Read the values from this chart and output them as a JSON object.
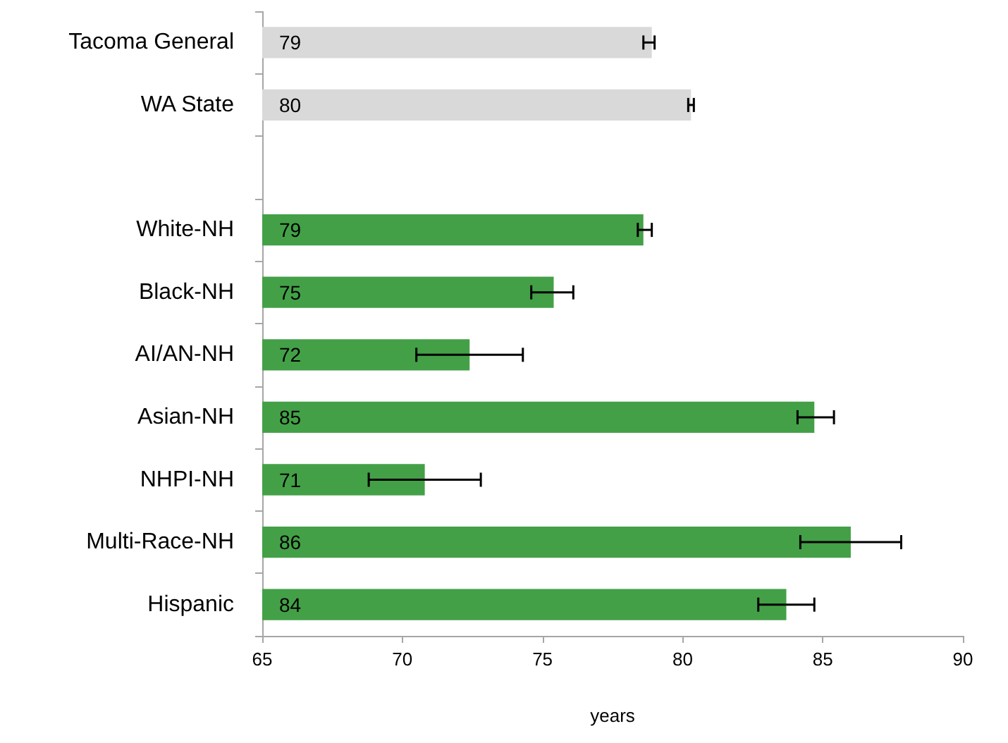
{
  "chart_data": {
    "type": "bar",
    "orientation": "horizontal",
    "xlabel": "years",
    "categories": [
      "Tacoma General",
      "WA State",
      null,
      "White-NH",
      "Black-NH",
      "AI/AN-NH",
      "Asian-NH",
      "NHPI-NH",
      "Multi-Race-NH",
      "Hispanic"
    ],
    "values": [
      78.9,
      80.3,
      null,
      78.6,
      75.4,
      72.4,
      84.7,
      70.8,
      86.0,
      83.7
    ],
    "colors": [
      "#d9d9d9",
      "#d9d9d9",
      null,
      "#43a047",
      "#43a047",
      "#43a047",
      "#43a047",
      "#43a047",
      "#43a047",
      "#43a047"
    ],
    "value_labels": [
      "79",
      "80",
      null,
      "79",
      "75",
      "72",
      "85",
      "71",
      "86",
      "84"
    ],
    "errors": [
      [
        78.6,
        79.0
      ],
      [
        80.2,
        80.4
      ],
      null,
      [
        78.4,
        78.9
      ],
      [
        74.6,
        76.1
      ],
      [
        70.5,
        74.3
      ],
      [
        84.1,
        85.4
      ],
      [
        68.8,
        72.8
      ],
      [
        84.2,
        87.8
      ],
      [
        82.7,
        84.7
      ]
    ],
    "xlim": [
      65,
      90
    ],
    "xticks": [
      65,
      70,
      75,
      80,
      85,
      90
    ],
    "grid": false
  }
}
